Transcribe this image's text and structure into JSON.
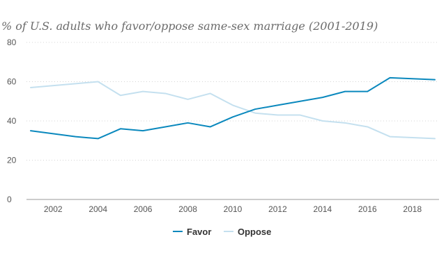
{
  "chart_data": {
    "type": "line",
    "title": "% of U.S. adults who favor/oppose same-sex marriage (2001-2019)",
    "xlabel": "",
    "ylabel": "",
    "x": [
      2001,
      2003,
      2004,
      2005,
      2006,
      2007,
      2008,
      2009,
      2010,
      2011,
      2012,
      2013,
      2014,
      2015,
      2016,
      2017,
      2019
    ],
    "xlim": [
      2001,
      2019
    ],
    "ylim": [
      0,
      80
    ],
    "x_ticks": [
      "2002",
      "2004",
      "2006",
      "2008",
      "2010",
      "2012",
      "2014",
      "2016",
      "2018"
    ],
    "y_ticks": [
      "0",
      "20",
      "40",
      "60",
      "80"
    ],
    "grid": "horizontal dotted",
    "legend_position": "bottom-center",
    "series": [
      {
        "name": "Favor",
        "color": "#0a88bd",
        "values": [
          35,
          32,
          31,
          36,
          35,
          37,
          39,
          37,
          42,
          46,
          48,
          50,
          52,
          55,
          55,
          62,
          61
        ]
      },
      {
        "name": "Oppose",
        "color": "#c4e0ef",
        "values": [
          57,
          59,
          60,
          53,
          55,
          54,
          51,
          54,
          48,
          44,
          43,
          43,
          40,
          39,
          37,
          32,
          31
        ]
      }
    ]
  }
}
